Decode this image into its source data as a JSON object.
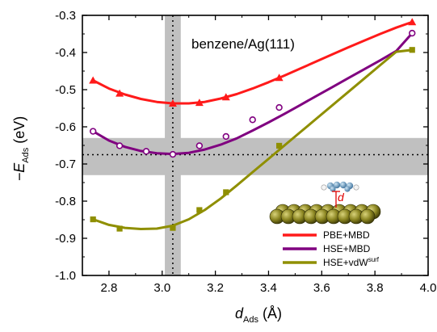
{
  "chart_data": {
    "type": "line",
    "annotation": "benzene/Ag(111)",
    "xlabel": {
      "main": "d",
      "sub": "Ads",
      "unit": "(Å)"
    },
    "ylabel": {
      "main": "−E",
      "sub": "Ads",
      "unit": "(eV)"
    },
    "xlim": [
      2.7,
      4.0
    ],
    "ylim": [
      -1.0,
      -0.3
    ],
    "x_ticks": [
      "2.8",
      "3.0",
      "3.2",
      "3.4",
      "3.6",
      "3.8",
      "4.0"
    ],
    "x_tick_values": [
      2.8,
      3.0,
      3.2,
      3.4,
      3.6,
      3.8,
      4.0
    ],
    "y_ticks": [
      "-0.3",
      "-0.4",
      "-0.5",
      "-0.6",
      "-0.7",
      "-0.8",
      "-0.9",
      "-1.0"
    ],
    "y_tick_values": [
      -0.3,
      -0.4,
      -0.5,
      -0.6,
      -0.7,
      -0.8,
      -0.9,
      -1.0
    ],
    "series": [
      {
        "name": "PBE+MBD",
        "color": "#ff1a1a",
        "marker": "triangle",
        "points": [
          [
            2.74,
            -0.475
          ],
          [
            2.84,
            -0.51
          ],
          [
            3.04,
            -0.537
          ],
          [
            3.14,
            -0.535
          ],
          [
            3.24,
            -0.52
          ],
          [
            3.44,
            -0.468
          ],
          [
            3.94,
            -0.318
          ]
        ],
        "curve": [
          [
            2.74,
            -0.475
          ],
          [
            2.8,
            -0.497
          ],
          [
            2.86,
            -0.513
          ],
          [
            2.92,
            -0.525
          ],
          [
            2.98,
            -0.533
          ],
          [
            3.04,
            -0.537
          ],
          [
            3.1,
            -0.537
          ],
          [
            3.16,
            -0.533
          ],
          [
            3.22,
            -0.524
          ],
          [
            3.28,
            -0.512
          ],
          [
            3.34,
            -0.497
          ],
          [
            3.4,
            -0.48
          ],
          [
            3.46,
            -0.462
          ],
          [
            3.52,
            -0.443
          ],
          [
            3.58,
            -0.424
          ],
          [
            3.64,
            -0.405
          ],
          [
            3.7,
            -0.386
          ],
          [
            3.76,
            -0.368
          ],
          [
            3.82,
            -0.35
          ],
          [
            3.88,
            -0.333
          ],
          [
            3.94,
            -0.318
          ]
        ]
      },
      {
        "name": "HSE+MBD",
        "color": "#800080",
        "marker": "circle",
        "points": [
          [
            2.74,
            -0.612
          ],
          [
            2.84,
            -0.651
          ],
          [
            2.94,
            -0.666
          ],
          [
            3.04,
            -0.674
          ],
          [
            3.14,
            -0.651
          ],
          [
            3.24,
            -0.626
          ],
          [
            3.34,
            -0.581
          ],
          [
            3.44,
            -0.548
          ],
          [
            3.94,
            -0.348
          ]
        ],
        "curve": [
          [
            2.74,
            -0.612
          ],
          [
            2.8,
            -0.637
          ],
          [
            2.86,
            -0.654
          ],
          [
            2.92,
            -0.665
          ],
          [
            2.98,
            -0.671
          ],
          [
            3.04,
            -0.673
          ],
          [
            3.1,
            -0.67
          ],
          [
            3.16,
            -0.661
          ],
          [
            3.22,
            -0.648
          ],
          [
            3.28,
            -0.631
          ],
          [
            3.34,
            -0.61
          ],
          [
            3.4,
            -0.588
          ],
          [
            3.46,
            -0.565
          ],
          [
            3.52,
            -0.541
          ],
          [
            3.58,
            -0.517
          ],
          [
            3.64,
            -0.493
          ],
          [
            3.7,
            -0.469
          ],
          [
            3.76,
            -0.445
          ],
          [
            3.82,
            -0.421
          ],
          [
            3.88,
            -0.396
          ],
          [
            3.94,
            -0.348
          ]
        ]
      },
      {
        "name": "HSE+vdW",
        "name_sup": "surf",
        "color": "#8f8f00",
        "marker": "square",
        "points": [
          [
            2.74,
            -0.849
          ],
          [
            2.84,
            -0.874
          ],
          [
            3.04,
            -0.872
          ],
          [
            3.14,
            -0.824
          ],
          [
            3.24,
            -0.776
          ],
          [
            3.44,
            -0.651
          ],
          [
            3.94,
            -0.393
          ]
        ],
        "curve": [
          [
            2.74,
            -0.849
          ],
          [
            2.8,
            -0.864
          ],
          [
            2.86,
            -0.872
          ],
          [
            2.92,
            -0.875
          ],
          [
            2.98,
            -0.874
          ],
          [
            3.04,
            -0.866
          ],
          [
            3.1,
            -0.849
          ],
          [
            3.16,
            -0.824
          ],
          [
            3.22,
            -0.793
          ],
          [
            3.28,
            -0.758
          ],
          [
            3.34,
            -0.722
          ],
          [
            3.4,
            -0.686
          ],
          [
            3.46,
            -0.65
          ],
          [
            3.52,
            -0.614
          ],
          [
            3.58,
            -0.578
          ],
          [
            3.64,
            -0.542
          ],
          [
            3.7,
            -0.506
          ],
          [
            3.76,
            -0.47
          ],
          [
            3.82,
            -0.434
          ],
          [
            3.88,
            -0.398
          ],
          [
            3.94,
            -0.393
          ]
        ]
      }
    ],
    "reference_bands": {
      "vertical": {
        "x": 3.04,
        "range": [
          3.01,
          3.07
        ],
        "color": "#c0c0c0"
      },
      "horizontal": {
        "y": -0.675,
        "range": [
          -0.73,
          -0.63
        ],
        "color": "#c0c0c0"
      }
    },
    "inset_label": "d",
    "legend_position": "bottom-right"
  }
}
